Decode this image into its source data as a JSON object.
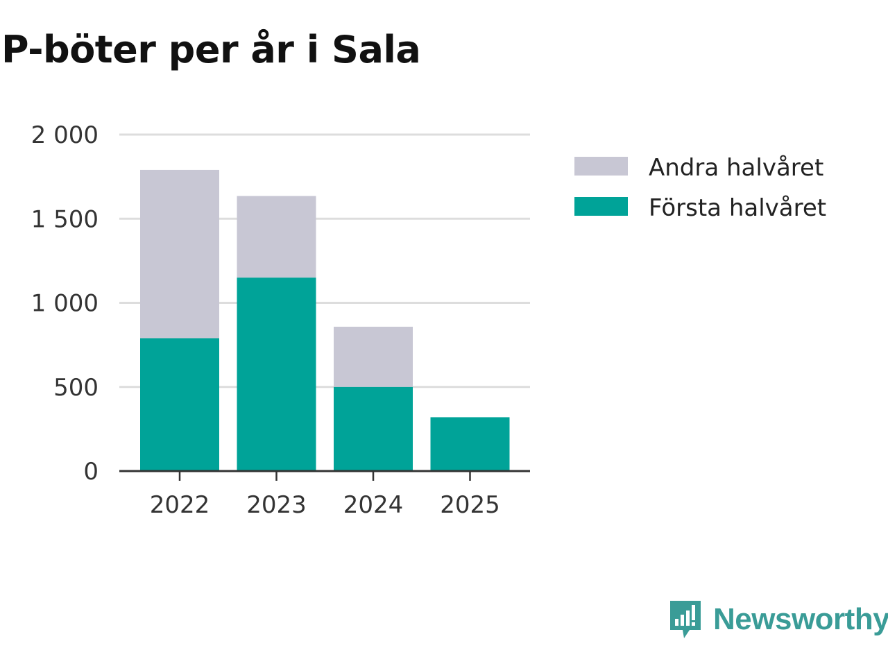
{
  "title": "P-böter per år i Sala",
  "brand": {
    "name": "Newsworthy",
    "color": "#3a9c97",
    "icon": "newsworthy-logo-icon"
  },
  "chart_data": {
    "type": "bar",
    "stacked": true,
    "title": "P-böter per år i Sala",
    "categories": [
      "2022",
      "2023",
      "2024",
      "2025"
    ],
    "series": [
      {
        "name": "Första halvåret",
        "color": "#00a398",
        "values": [
          790,
          1150,
          500,
          320
        ]
      },
      {
        "name": "Andra halvåret",
        "color": "#c8c7d4",
        "values": [
          1000,
          485,
          358,
          0
        ]
      }
    ],
    "legend_order": [
      "Andra halvåret",
      "Första halvåret"
    ],
    "legend_position": "right",
    "ylim": [
      0,
      2000
    ],
    "yticks": [
      0,
      500,
      1000,
      1500,
      2000
    ],
    "ytick_labels": [
      "0",
      "500",
      "1 000",
      "1 500",
      "2 000"
    ],
    "xlabel": "",
    "ylabel": "",
    "grid": true
  }
}
